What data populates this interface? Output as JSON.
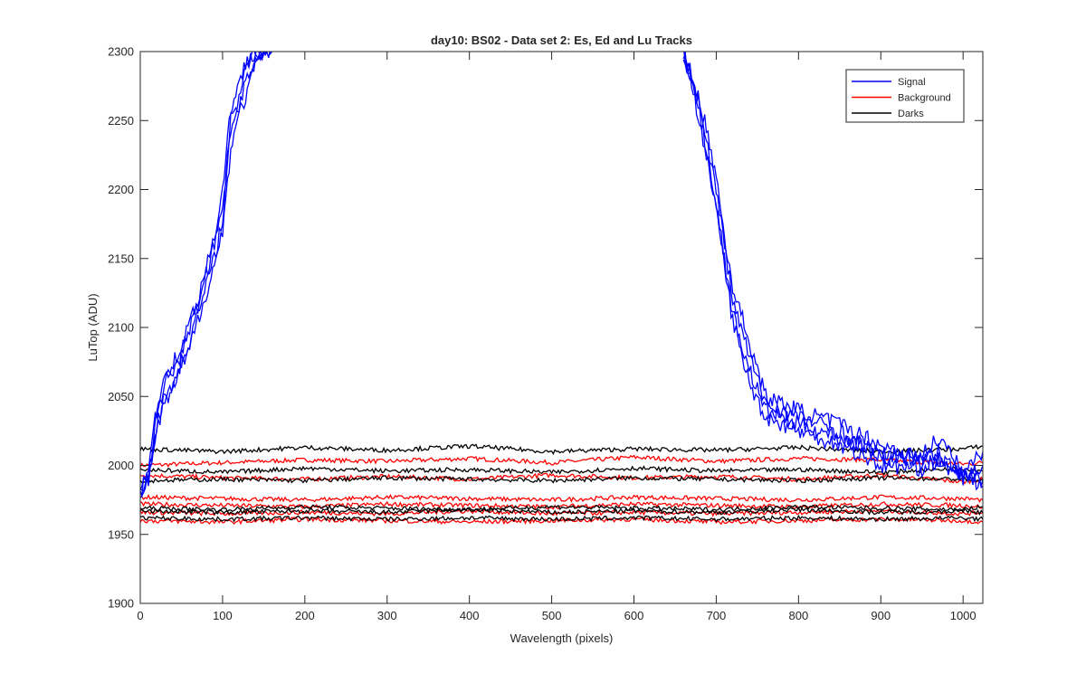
{
  "chart_data": {
    "type": "line",
    "title": "day10: BS02 - Data set 2: Es, Ed and Lu Tracks",
    "xlabel": "Wavelength (pixels)",
    "ylabel": "LuTop (ADU)",
    "xlim": [
      0,
      1024
    ],
    "ylim": [
      1900,
      2300
    ],
    "xticks": [
      0,
      100,
      200,
      300,
      400,
      500,
      600,
      700,
      800,
      900,
      1000
    ],
    "yticks": [
      1900,
      1950,
      2000,
      2050,
      2100,
      2150,
      2200,
      2250,
      2300
    ],
    "grid": false,
    "legend": {
      "position": "top-right",
      "entries": [
        "Signal",
        "Background",
        "Darks"
      ]
    },
    "colors": {
      "Signal": "#0000ff",
      "Background": "#ff0000",
      "Darks": "#000000"
    },
    "series": [
      {
        "name": "Signal",
        "x": [
          0,
          10,
          20,
          30,
          40,
          50,
          60,
          70,
          80,
          90,
          100,
          110,
          120,
          130,
          140,
          150,
          160
        ],
        "y": [
          1980,
          1995,
          2035,
          2060,
          2070,
          2080,
          2100,
          2115,
          2140,
          2160,
          2190,
          2240,
          2270,
          2290,
          2300,
          2300,
          2300
        ]
      },
      {
        "name": "Signal",
        "x": [
          0,
          10,
          20,
          30,
          40,
          50,
          60,
          70,
          80,
          90,
          100,
          110,
          120,
          130,
          140,
          150,
          160
        ],
        "y": [
          1978,
          1990,
          2030,
          2050,
          2060,
          2075,
          2090,
          2110,
          2130,
          2150,
          2180,
          2250,
          2260,
          2280,
          2295,
          2300,
          2300
        ]
      },
      {
        "name": "Signal",
        "x": [
          0,
          10,
          20,
          30,
          40,
          50,
          60,
          70,
          80,
          90,
          100,
          110,
          120,
          130,
          140,
          150,
          160
        ],
        "y": [
          1982,
          2000,
          2040,
          2065,
          2075,
          2085,
          2105,
          2120,
          2145,
          2165,
          2200,
          2260,
          2275,
          2295,
          2300,
          2300,
          2300
        ]
      },
      {
        "name": "Signal",
        "x": [
          0,
          10,
          20,
          30,
          40,
          50,
          60,
          70,
          80,
          90,
          100,
          110,
          120,
          130,
          140,
          150,
          160
        ],
        "y": [
          1979,
          1992,
          2025,
          2045,
          2055,
          2070,
          2085,
          2105,
          2125,
          2145,
          2170,
          2230,
          2255,
          2270,
          2290,
          2300,
          2300
        ]
      },
      {
        "name": "Signal",
        "x": [
          660,
          680,
          700,
          710,
          720,
          740,
          760,
          800,
          850,
          900,
          950,
          970,
          1000,
          1024
        ],
        "y": [
          2300,
          2260,
          2200,
          2160,
          2120,
          2080,
          2045,
          2035,
          2025,
          2005,
          2008,
          2020,
          1995,
          2010
        ]
      },
      {
        "name": "Signal",
        "x": [
          660,
          680,
          700,
          710,
          720,
          740,
          760,
          800,
          850,
          900,
          950,
          970,
          1000,
          1024
        ],
        "y": [
          2300,
          2255,
          2190,
          2150,
          2110,
          2070,
          2040,
          2030,
          2020,
          2010,
          2002,
          2010,
          1990,
          2000
        ]
      },
      {
        "name": "Signal",
        "x": [
          660,
          680,
          700,
          710,
          720,
          740,
          760,
          800,
          850,
          900,
          950,
          970,
          1000,
          1024
        ],
        "y": [
          2300,
          2265,
          2210,
          2165,
          2130,
          2090,
          2050,
          2040,
          2030,
          2015,
          2005,
          2000,
          1995,
          1985
        ]
      },
      {
        "name": "Signal",
        "x": [
          660,
          680,
          700,
          710,
          720,
          740,
          760,
          800,
          850,
          900,
          950,
          970,
          1000,
          1024
        ],
        "y": [
          2300,
          2250,
          2185,
          2145,
          2105,
          2060,
          2035,
          2025,
          2015,
          2000,
          1998,
          2005,
          1993,
          1990
        ]
      },
      {
        "name": "Background",
        "x": [
          0,
          100,
          200,
          300,
          400,
          500,
          600,
          700,
          800,
          900,
          1000,
          1024
        ],
        "y": [
          2000,
          2002,
          2004,
          2003,
          2005,
          2002,
          2006,
          2003,
          2005,
          2004,
          2001,
          2002
        ]
      },
      {
        "name": "Background",
        "x": [
          0,
          100,
          200,
          300,
          400,
          500,
          600,
          700,
          800,
          900,
          1000,
          1024
        ],
        "y": [
          1993,
          1991,
          1990,
          1992,
          1990,
          1993,
          1991,
          1992,
          1990,
          1993,
          1988,
          1990
        ]
      },
      {
        "name": "Background",
        "x": [
          0,
          100,
          200,
          300,
          400,
          500,
          600,
          700,
          800,
          900,
          1000,
          1024
        ],
        "y": [
          1977,
          1976,
          1975,
          1977,
          1976,
          1975,
          1977,
          1976,
          1975,
          1977,
          1976,
          1975
        ]
      },
      {
        "name": "Background",
        "x": [
          0,
          100,
          200,
          300,
          400,
          500,
          600,
          700,
          800,
          900,
          1000,
          1024
        ],
        "y": [
          1972,
          1971,
          1970,
          1972,
          1971,
          1970,
          1972,
          1971,
          1970,
          1972,
          1971,
          1970
        ]
      },
      {
        "name": "Background",
        "x": [
          0,
          100,
          200,
          300,
          400,
          500,
          600,
          700,
          800,
          900,
          1000,
          1024
        ],
        "y": [
          1966,
          1965,
          1966,
          1965,
          1967,
          1965,
          1966,
          1965,
          1966,
          1967,
          1965,
          1966
        ]
      },
      {
        "name": "Background",
        "x": [
          0,
          100,
          200,
          300,
          400,
          500,
          600,
          700,
          800,
          900,
          1000,
          1024
        ],
        "y": [
          1960,
          1959,
          1961,
          1960,
          1959,
          1960,
          1961,
          1959,
          1960,
          1961,
          1960,
          1959
        ]
      },
      {
        "name": "Darks",
        "x": [
          0,
          100,
          200,
          300,
          400,
          500,
          600,
          700,
          800,
          900,
          1000,
          1024
        ],
        "y": [
          2012,
          2010,
          2013,
          2011,
          2014,
          2010,
          2012,
          2011,
          2013,
          2010,
          2012,
          2014
        ]
      },
      {
        "name": "Darks",
        "x": [
          0,
          100,
          200,
          300,
          400,
          500,
          600,
          700,
          800,
          900,
          1000,
          1024
        ],
        "y": [
          1997,
          1995,
          1998,
          1996,
          1997,
          1995,
          1998,
          1996,
          1997,
          1995,
          1998,
          1996
        ]
      },
      {
        "name": "Darks",
        "x": [
          0,
          100,
          200,
          300,
          400,
          500,
          600,
          700,
          800,
          900,
          1000,
          1024
        ],
        "y": [
          1989,
          1990,
          1989,
          1991,
          1990,
          1989,
          1991,
          1990,
          1989,
          1991,
          1990,
          1989
        ]
      },
      {
        "name": "Darks",
        "x": [
          0,
          100,
          200,
          300,
          400,
          500,
          600,
          700,
          800,
          900,
          1000,
          1024
        ],
        "y": [
          1969,
          1968,
          1970,
          1969,
          1968,
          1970,
          1969,
          1968,
          1970,
          1969,
          1968,
          1970
        ]
      },
      {
        "name": "Darks",
        "x": [
          0,
          100,
          200,
          300,
          400,
          500,
          600,
          700,
          800,
          900,
          1000,
          1024
        ],
        "y": [
          1967,
          1966,
          1967,
          1966,
          1968,
          1966,
          1967,
          1966,
          1968,
          1966,
          1967,
          1966
        ]
      },
      {
        "name": "Darks",
        "x": [
          0,
          100,
          200,
          300,
          400,
          500,
          600,
          700,
          800,
          900,
          1000,
          1024
        ],
        "y": [
          1962,
          1961,
          1962,
          1961,
          1962,
          1961,
          1962,
          1961,
          1962,
          1961,
          1962,
          1961
        ]
      }
    ]
  }
}
